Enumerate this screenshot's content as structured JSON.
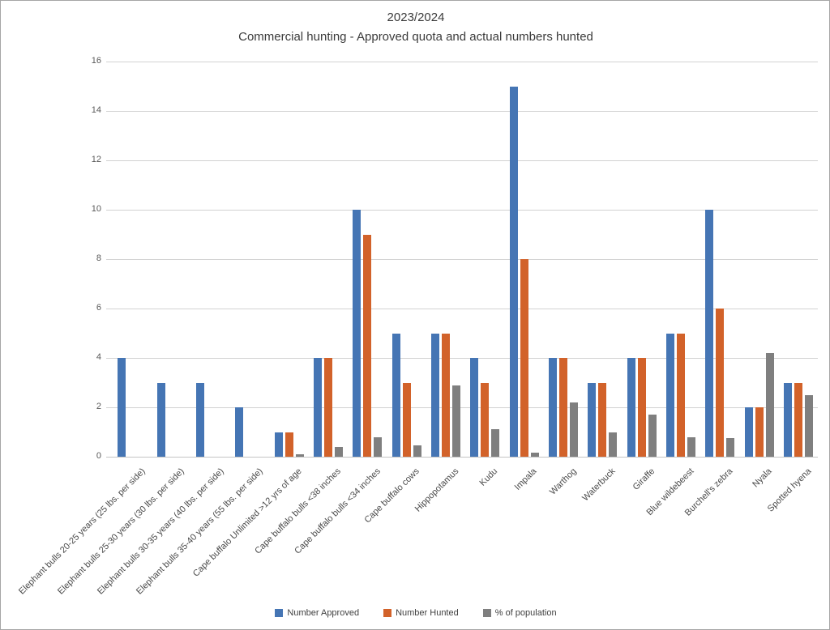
{
  "frame": {
    "background": "#ffffff",
    "border_color": "#a6a6a6"
  },
  "chart_data": {
    "type": "bar",
    "title_line1": "2023/2024",
    "title_line2": "Commercial hunting - Approved quota and actual numbers hunted",
    "categories": [
      "Elephant bulls 20-25 years (25 lbs. per side)",
      "Elephant bulls 25-30 years (30 lbs. per side)",
      "Elephant bulls 30-35 years (40 lbs. per side)",
      "Elephant bulls 35-40 years (55 lbs. per side)",
      "Cape buffalo Unlimited >12 yrs of age",
      "Cape buffalo bulls <38 inches",
      "Cape buffalo bulls <34 inches",
      "Cape buffalo cows",
      "Hippopotamus",
      "Kudu",
      "Impala",
      "Warthog",
      "Waterbuck",
      "Giraffe",
      "Blue wildebeest",
      "Burchell's zebra",
      "Nyala",
      "Spotted hyena"
    ],
    "series": [
      {
        "name": "Number Approved",
        "color": "#4575b4",
        "values": [
          4,
          3,
          3,
          2,
          1,
          4,
          10,
          5,
          5,
          4,
          15,
          4,
          3,
          4,
          5,
          10,
          2,
          3
        ]
      },
      {
        "name": "Number Hunted",
        "color": "#d2622a",
        "values": [
          0,
          0,
          0,
          0,
          1,
          4,
          9,
          3,
          5,
          3,
          8,
          4,
          3,
          4,
          5,
          6,
          2,
          3
        ]
      },
      {
        "name": "% of population",
        "color": "#7f7f7f",
        "values": [
          0,
          0,
          0,
          0,
          0.1,
          0.4,
          0.8,
          0.45,
          2.9,
          1.1,
          0.15,
          2.2,
          1.0,
          1.7,
          0.8,
          0.75,
          4.2,
          2.5
        ]
      }
    ],
    "ylim": [
      0,
      16
    ],
    "yticks": [
      0,
      2,
      4,
      6,
      8,
      10,
      12,
      14,
      16
    ],
    "grid": true,
    "legend_position": "bottom",
    "gridline_color": "#d2d2d2",
    "axis_text_color": "#595959"
  }
}
